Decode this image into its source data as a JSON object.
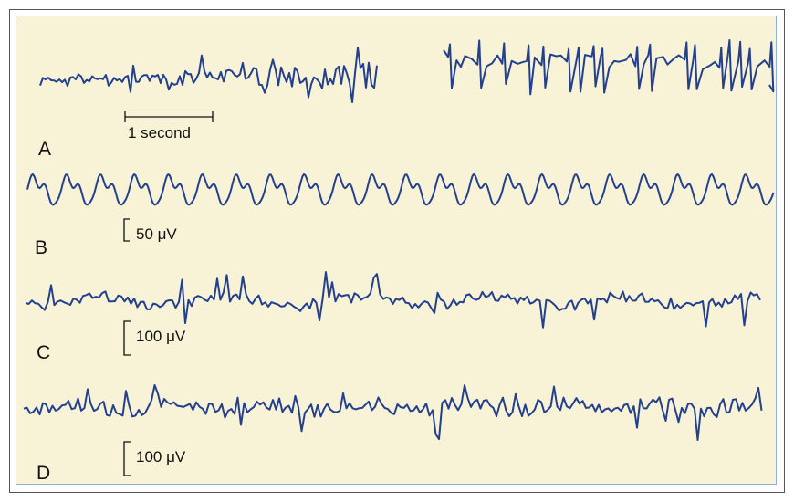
{
  "panels": [
    {
      "letter": "A",
      "scale_label": "1 second"
    },
    {
      "letter": "B",
      "scale_label": "50 μV"
    },
    {
      "letter": "C",
      "scale_label": "100 μV"
    },
    {
      "letter": "D",
      "scale_label": "100 μV"
    }
  ],
  "colors": {
    "trace": "#23408f",
    "panel_background": "#f8f2d6",
    "panel_border": "#8fb0d8"
  }
}
